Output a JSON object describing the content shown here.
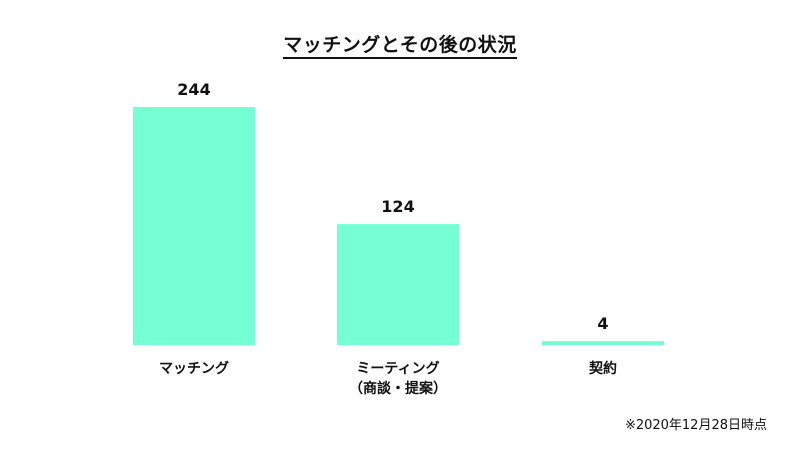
{
  "chart_data": {
    "type": "bar",
    "title": "マッチングとその後の状況",
    "categories": [
      [
        "マッチング"
      ],
      [
        "ミーティング",
        "（商談・提案）"
      ],
      [
        "契約"
      ]
    ],
    "values": [
      244,
      124,
      4
    ],
    "ylim": [
      0,
      244
    ],
    "grid": false,
    "legend": false,
    "bar_color": "#76FFD3",
    "xlabel": "",
    "ylabel": ""
  },
  "footnote": "※2020年12月28日時点"
}
